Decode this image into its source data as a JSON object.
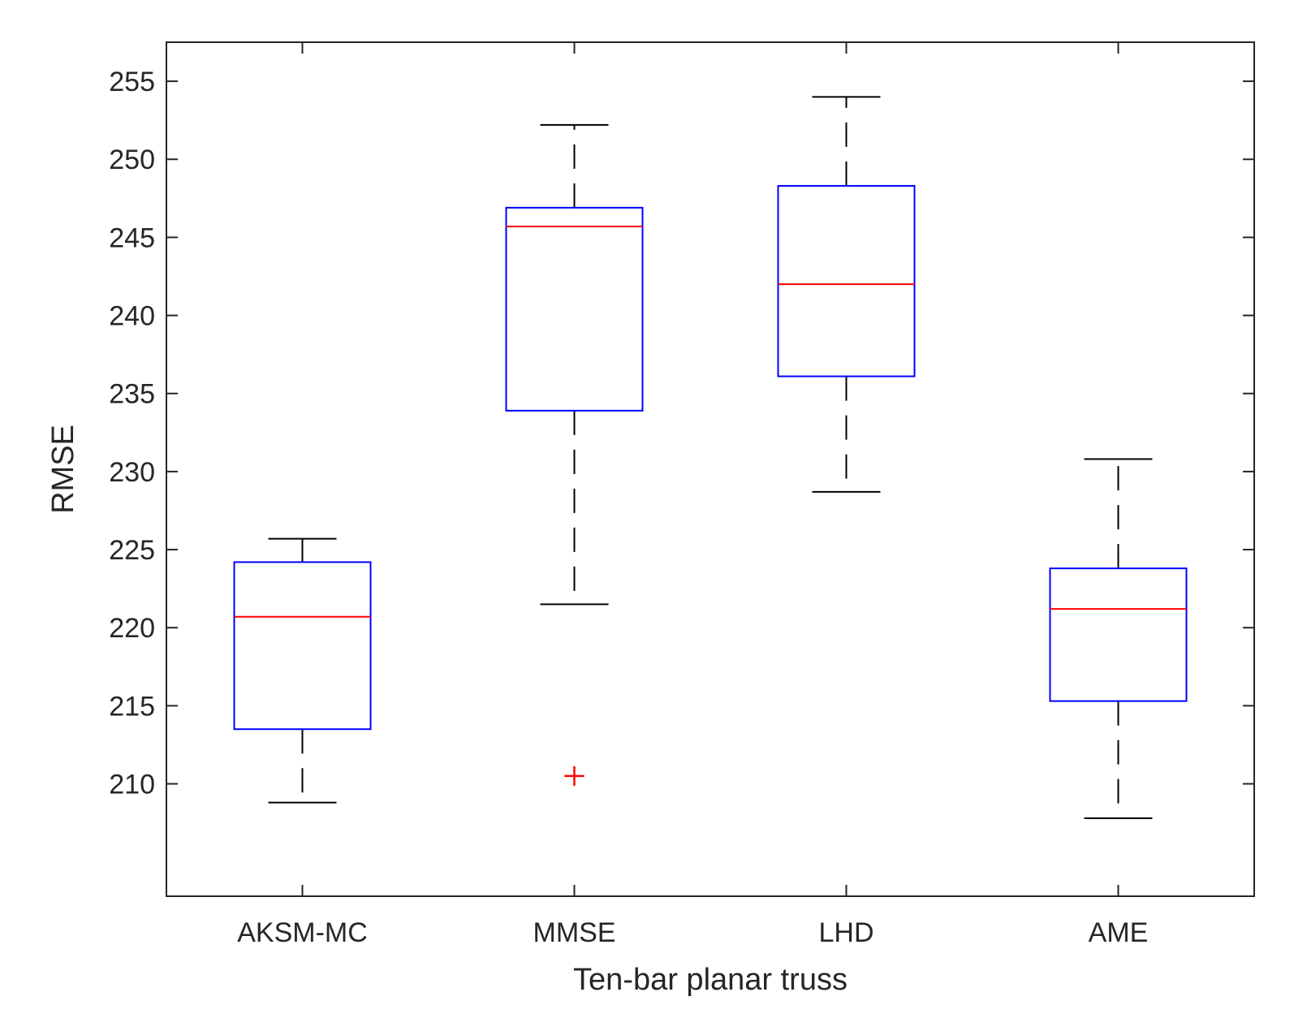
{
  "chart_data": {
    "type": "box",
    "title": "",
    "xlabel": "Ten-bar planar truss",
    "ylabel": "RMSE",
    "ylim": [
      202.8,
      257.5
    ],
    "yticks": [
      210,
      215,
      220,
      225,
      230,
      235,
      240,
      245,
      250,
      255
    ],
    "categories": [
      "AKSM-MC",
      "MMSE",
      "LHD",
      "AME"
    ],
    "boxes": [
      {
        "name": "AKSM-MC",
        "whisker_low": 208.8,
        "q1": 213.5,
        "median": 220.7,
        "q3": 224.2,
        "whisker_high": 225.7,
        "outliers": []
      },
      {
        "name": "MMSE",
        "whisker_low": 221.5,
        "q1": 233.9,
        "median": 245.7,
        "q3": 246.9,
        "whisker_high": 252.2,
        "outliers": [
          210.5
        ]
      },
      {
        "name": "LHD",
        "whisker_low": 228.7,
        "q1": 236.1,
        "median": 242.0,
        "q3": 248.3,
        "whisker_high": 254.0,
        "outliers": []
      },
      {
        "name": "AME",
        "whisker_low": 207.8,
        "q1": 215.3,
        "median": 221.2,
        "q3": 223.8,
        "whisker_high": 230.8,
        "outliers": []
      }
    ],
    "grid": false,
    "colors": {
      "box": "#0000ff",
      "median": "#ff0000",
      "whisker": "#000000",
      "outlier": "#ff0000",
      "axis": "#262626"
    }
  }
}
